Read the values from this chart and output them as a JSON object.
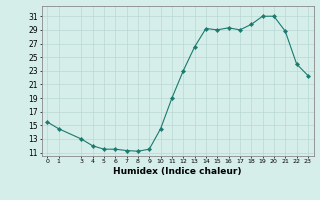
{
  "x": [
    0,
    1,
    3,
    4,
    5,
    6,
    7,
    8,
    9,
    10,
    11,
    12,
    13,
    14,
    15,
    16,
    17,
    18,
    19,
    20,
    21,
    22,
    23
  ],
  "y": [
    15.5,
    14.5,
    13.0,
    12.0,
    11.5,
    11.5,
    11.3,
    11.2,
    11.5,
    14.5,
    19.0,
    23.0,
    26.5,
    29.2,
    29.0,
    29.3,
    29.0,
    29.8,
    31.0,
    31.0,
    28.8,
    24.0,
    22.3
  ],
  "line_color": "#1a7a6e",
  "marker_color": "#1a7a6e",
  "bg_color": "#d6eeea",
  "grid_color": "#b8d8d4",
  "xlabel": "Humidex (Indice chaleur)",
  "yticks": [
    11,
    13,
    15,
    17,
    19,
    21,
    23,
    25,
    27,
    29,
    31
  ],
  "xticks": [
    0,
    1,
    3,
    4,
    5,
    6,
    7,
    8,
    9,
    10,
    11,
    12,
    13,
    14,
    15,
    16,
    17,
    18,
    19,
    20,
    21,
    22,
    23
  ],
  "ylim": [
    10.5,
    32.5
  ],
  "xlim": [
    -0.5,
    23.5
  ]
}
